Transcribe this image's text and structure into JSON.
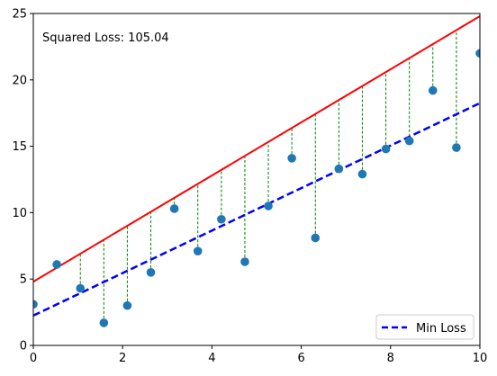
{
  "chart_data": {
    "type": "scatter",
    "xlim": [
      0,
      10
    ],
    "ylim": [
      0,
      25
    ],
    "xticks": [
      0,
      2,
      4,
      6,
      8,
      10
    ],
    "yticks": [
      0,
      5,
      10,
      15,
      20,
      25
    ],
    "grid": false,
    "annotation": "Squared Loss: 105.04",
    "points": {
      "x": [
        0,
        0.526,
        1.053,
        1.579,
        2.105,
        2.632,
        3.158,
        3.684,
        4.211,
        4.737,
        5.263,
        5.789,
        6.316,
        6.842,
        7.368,
        7.895,
        8.421,
        8.947,
        9.474,
        10
      ],
      "y": [
        3.1,
        6.1,
        4.3,
        1.7,
        3.0,
        5.5,
        10.3,
        7.1,
        9.5,
        6.3,
        10.5,
        14.1,
        8.1,
        13.3,
        12.9,
        14.8,
        15.4,
        19.2,
        14.9,
        22.0
      ],
      "color": "#1f77b4"
    },
    "series": [
      {
        "style": "solid",
        "color": "#ff0000",
        "slope": 2.0,
        "intercept": 4.8
      },
      {
        "name": "Min Loss",
        "style": "dashed",
        "color": "#0000ff",
        "slope": 1.6,
        "intercept": 2.25
      }
    ],
    "residuals": {
      "color": "#008000",
      "style": "dashed"
    },
    "legend": {
      "position": "lower-right",
      "entries": [
        "Min Loss"
      ]
    }
  }
}
